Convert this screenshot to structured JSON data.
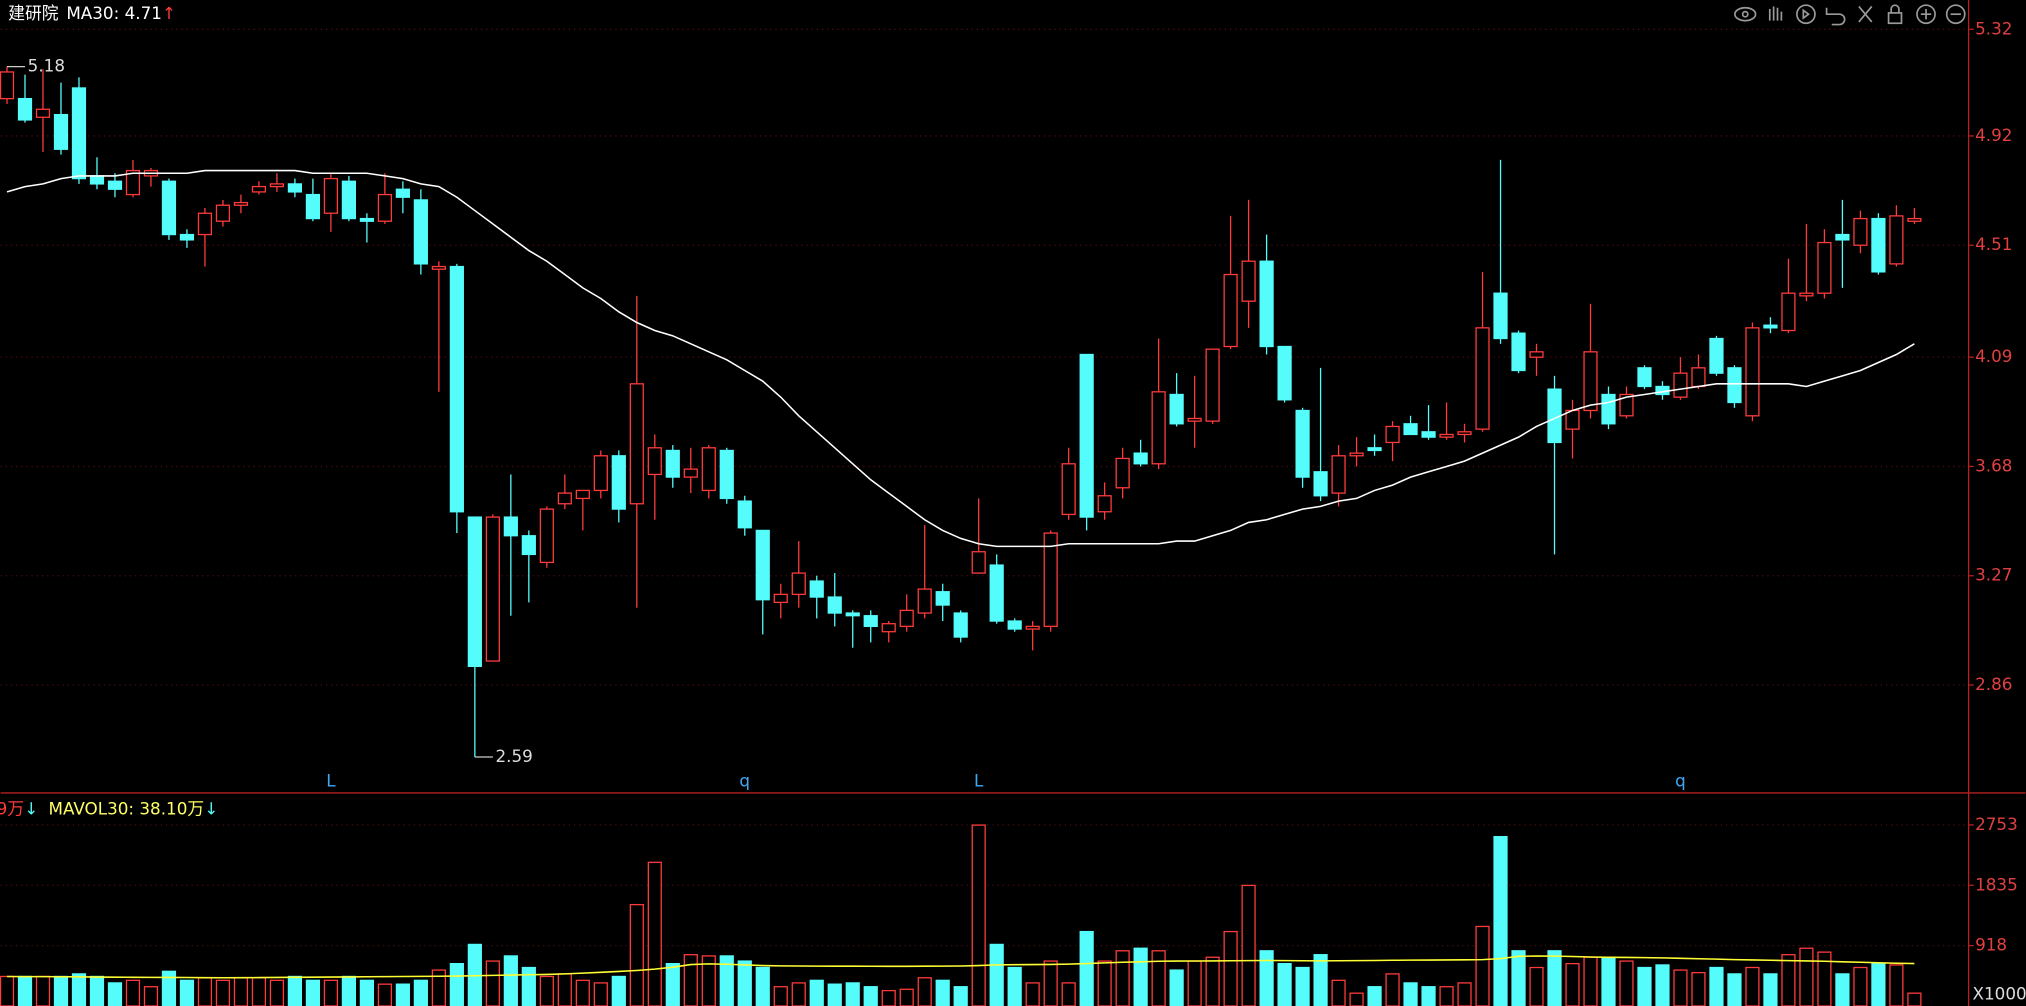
{
  "chart_data": [
    {
      "type": "candlestick",
      "title": "建研院",
      "indicator_label": "MA30: 4.71",
      "indicator_arrow": "↑",
      "up_color": "#ff3b3b",
      "down_color": "#54fcfc",
      "grid": true,
      "open": [
        5.06,
        5.06,
        4.99,
        5.0,
        5.1,
        4.77,
        4.75,
        4.7,
        4.77,
        4.75,
        4.55,
        4.55,
        4.6,
        4.66,
        4.71,
        4.73,
        4.74,
        4.7,
        4.63,
        4.75,
        4.61,
        4.6,
        4.72,
        4.68,
        4.42,
        4.43,
        3.49,
        2.95,
        3.49,
        3.42,
        3.32,
        3.54,
        3.56,
        3.59,
        3.72,
        3.54,
        3.65,
        3.74,
        3.64,
        3.59,
        3.74,
        3.55,
        3.44,
        3.17,
        3.2,
        3.25,
        3.19,
        3.13,
        3.12,
        3.06,
        3.08,
        3.13,
        3.21,
        3.13,
        3.28,
        3.31,
        3.1,
        3.07,
        3.08,
        3.5,
        4.1,
        3.51,
        3.6,
        3.73,
        3.69,
        3.95,
        3.85,
        3.85,
        4.13,
        4.3,
        4.45,
        4.13,
        3.89,
        3.66,
        3.58,
        3.72,
        3.75,
        3.77,
        3.84,
        3.81,
        3.79,
        3.8,
        3.82,
        4.33,
        4.18,
        4.09,
        3.97,
        3.82,
        3.89,
        3.95,
        3.87,
        4.05,
        3.98,
        3.94,
        3.98,
        4.16,
        4.05,
        3.87,
        4.21,
        4.19,
        4.32,
        4.33,
        4.55,
        4.51,
        4.61,
        4.44,
        4.6
      ],
      "high": [
        5.18,
        5.15,
        5.17,
        5.12,
        5.14,
        4.84,
        4.78,
        4.83,
        4.8,
        4.76,
        4.57,
        4.65,
        4.68,
        4.7,
        4.75,
        4.78,
        4.76,
        4.76,
        4.78,
        4.77,
        4.63,
        4.78,
        4.75,
        4.72,
        4.45,
        4.44,
        3.49,
        3.5,
        3.65,
        3.44,
        3.53,
        3.65,
        3.59,
        3.74,
        3.74,
        4.32,
        3.8,
        3.76,
        3.75,
        3.76,
        3.75,
        3.57,
        3.44,
        3.24,
        3.4,
        3.27,
        3.28,
        3.14,
        3.14,
        3.1,
        3.2,
        3.46,
        3.24,
        3.14,
        3.56,
        3.35,
        3.11,
        3.1,
        3.44,
        3.75,
        4.1,
        3.62,
        3.75,
        3.78,
        4.16,
        4.03,
        4.02,
        4.12,
        4.62,
        4.68,
        4.55,
        4.13,
        3.9,
        4.05,
        3.76,
        3.79,
        3.8,
        3.85,
        3.87,
        3.91,
        3.92,
        3.84,
        4.41,
        4.83,
        4.19,
        4.14,
        4.02,
        3.93,
        4.29,
        3.98,
        3.98,
        4.06,
        4.0,
        4.09,
        4.1,
        4.17,
        4.06,
        4.22,
        4.24,
        4.46,
        4.59,
        4.57,
        4.68,
        4.64,
        4.63,
        4.66,
        4.65
      ],
      "low": [
        5.04,
        4.97,
        4.86,
        4.85,
        4.74,
        4.72,
        4.69,
        4.69,
        4.73,
        4.53,
        4.5,
        4.43,
        4.58,
        4.63,
        4.7,
        4.71,
        4.69,
        4.6,
        4.56,
        4.6,
        4.52,
        4.59,
        4.63,
        4.4,
        3.96,
        3.43,
        2.59,
        2.95,
        3.12,
        3.17,
        3.3,
        3.52,
        3.44,
        3.56,
        3.47,
        3.15,
        3.48,
        3.6,
        3.58,
        3.56,
        3.54,
        3.42,
        3.05,
        3.11,
        3.15,
        3.11,
        3.08,
        3.0,
        3.02,
        3.02,
        3.06,
        3.11,
        3.1,
        3.02,
        3.28,
        3.09,
        3.06,
        2.99,
        3.06,
        3.48,
        3.44,
        3.48,
        3.56,
        3.68,
        3.67,
        3.83,
        3.75,
        3.84,
        4.12,
        4.2,
        4.1,
        3.92,
        3.6,
        3.55,
        3.53,
        3.68,
        3.72,
        3.7,
        3.8,
        3.78,
        3.78,
        3.77,
        3.81,
        4.14,
        4.03,
        4.02,
        3.35,
        3.71,
        3.86,
        3.82,
        3.86,
        3.97,
        3.93,
        3.93,
        3.97,
        4.02,
        3.9,
        3.85,
        4.18,
        4.18,
        4.3,
        4.31,
        4.35,
        4.48,
        4.4,
        4.43,
        4.59
      ],
      "close": [
        5.16,
        4.98,
        5.02,
        4.87,
        4.76,
        4.74,
        4.72,
        4.79,
        4.79,
        4.55,
        4.53,
        4.63,
        4.66,
        4.67,
        4.73,
        4.74,
        4.71,
        4.61,
        4.76,
        4.61,
        4.6,
        4.7,
        4.69,
        4.44,
        4.43,
        3.51,
        2.93,
        3.49,
        3.42,
        3.35,
        3.52,
        3.58,
        3.59,
        3.72,
        3.52,
        3.99,
        3.75,
        3.64,
        3.67,
        3.75,
        3.56,
        3.45,
        3.18,
        3.2,
        3.28,
        3.19,
        3.13,
        3.12,
        3.08,
        3.09,
        3.14,
        3.22,
        3.16,
        3.04,
        3.36,
        3.1,
        3.07,
        3.08,
        3.43,
        3.69,
        3.49,
        3.57,
        3.71,
        3.69,
        3.96,
        3.84,
        3.86,
        4.12,
        4.4,
        4.45,
        4.13,
        3.93,
        3.64,
        3.57,
        3.72,
        3.73,
        3.74,
        3.83,
        3.8,
        3.79,
        3.8,
        3.81,
        4.2,
        4.16,
        4.04,
        4.11,
        3.77,
        3.89,
        4.11,
        3.84,
        3.95,
        3.98,
        3.95,
        4.03,
        4.05,
        4.03,
        3.92,
        4.2,
        4.2,
        4.33,
        4.33,
        4.52,
        4.53,
        4.61,
        4.41,
        4.62,
        4.61
      ],
      "ma30": {
        "color": "#ffffff",
        "values": [
          4.71,
          4.73,
          4.74,
          4.76,
          4.77,
          4.77,
          4.77,
          4.78,
          4.78,
          4.78,
          4.78,
          4.79,
          4.79,
          4.79,
          4.79,
          4.79,
          4.79,
          4.78,
          4.78,
          4.78,
          4.78,
          4.77,
          4.76,
          4.74,
          4.73,
          4.69,
          4.64,
          4.59,
          4.54,
          4.49,
          4.45,
          4.4,
          4.35,
          4.31,
          4.26,
          4.22,
          4.19,
          4.17,
          4.14,
          4.11,
          4.08,
          4.04,
          4.0,
          3.94,
          3.87,
          3.81,
          3.75,
          3.69,
          3.63,
          3.58,
          3.53,
          3.48,
          3.44,
          3.41,
          3.39,
          3.38,
          3.38,
          3.38,
          3.38,
          3.39,
          3.39,
          3.39,
          3.39,
          3.39,
          3.39,
          3.4,
          3.4,
          3.42,
          3.44,
          3.47,
          3.48,
          3.5,
          3.52,
          3.53,
          3.55,
          3.56,
          3.59,
          3.61,
          3.64,
          3.66,
          3.68,
          3.7,
          3.73,
          3.76,
          3.79,
          3.83,
          3.86,
          3.89,
          3.91,
          3.92,
          3.94,
          3.95,
          3.96,
          3.97,
          3.98,
          3.99,
          3.99,
          3.99,
          3.99,
          3.99,
          3.98,
          4.0,
          4.02,
          4.04,
          4.07,
          4.1,
          4.14
        ]
      },
      "ylim": [
        2.46,
        5.43
      ],
      "yticks": [
        5.32,
        4.92,
        4.51,
        4.09,
        3.68,
        3.27,
        2.86
      ],
      "high_marker": 5.18,
      "low_marker": 2.59,
      "event_color": "#3fa9f5",
      "event_labels": [
        null,
        null,
        null,
        null,
        null,
        null,
        null,
        null,
        null,
        null,
        null,
        null,
        null,
        null,
        null,
        null,
        null,
        null,
        "L",
        null,
        null,
        null,
        null,
        null,
        null,
        null,
        null,
        null,
        null,
        null,
        null,
        null,
        null,
        null,
        null,
        null,
        null,
        null,
        null,
        null,
        null,
        "q",
        null,
        null,
        null,
        null,
        null,
        null,
        null,
        null,
        null,
        null,
        null,
        null,
        "L",
        null,
        null,
        null,
        null,
        null,
        null,
        null,
        null,
        null,
        null,
        null,
        null,
        null,
        null,
        null,
        null,
        null,
        null,
        null,
        null,
        null,
        null,
        null,
        null,
        null,
        null,
        null,
        null,
        null,
        null,
        null,
        null,
        null,
        null,
        null,
        null,
        null,
        null,
        "q",
        null,
        null,
        null,
        null,
        null,
        null,
        null,
        null,
        null,
        null,
        null,
        null,
        null
      ]
    },
    {
      "type": "volume",
      "volume_label": "9万",
      "volume_arrow": "↓",
      "mavol_label": "MAVOL30: 38.10万",
      "mavol_arrow": "↓",
      "unit_label": "X1000",
      "grid": true,
      "values": [
        449,
        449,
        449,
        449,
        488,
        449,
        351,
        390,
        293,
        527,
        390,
        429,
        390,
        429,
        429,
        390,
        449,
        390,
        390,
        449,
        390,
        332,
        332,
        390,
        546,
        644,
        936,
        683,
        761,
        585,
        449,
        488,
        390,
        351,
        449,
        1541,
        2184,
        644,
        780,
        761,
        761,
        683,
        585,
        293,
        351,
        390,
        332,
        351,
        293,
        234,
        254,
        429,
        390,
        293,
        2750,
        936,
        585,
        351,
        683,
        351,
        1131,
        683,
        839,
        878,
        839,
        546,
        683,
        741,
        1131,
        1833,
        839,
        644,
        585,
        780,
        390,
        195,
        293,
        488,
        351,
        293,
        293,
        351,
        1209,
        2574,
        839,
        585,
        839,
        644,
        741,
        741,
        683,
        585,
        624,
        546,
        507,
        585,
        488,
        585,
        488,
        780,
        878,
        819,
        488,
        585,
        644,
        624,
        195
      ],
      "ma": {
        "color": "#ffff33",
        "values": [
          449,
          447,
          446,
          445,
          444,
          440,
          438,
          436,
          435,
          434,
          433,
          430,
          429,
          430,
          432,
          434,
          436,
          438,
          440,
          442,
          445,
          447,
          449,
          450,
          452,
          455,
          460,
          466,
          470,
          475,
          480,
          488,
          500,
          512,
          525,
          540,
          560,
          590,
          630,
          640,
          635,
          625,
          615,
          610,
          608,
          606,
          605,
          605,
          604,
          603,
          603,
          605,
          606,
          608,
          615,
          625,
          628,
          630,
          632,
          636,
          645,
          655,
          665,
          672,
          680,
          683,
          684,
          685,
          688,
          690,
          692,
          690,
          688,
          686,
          688,
          690,
          692,
          695,
          697,
          698,
          700,
          702,
          705,
          720,
          755,
          760,
          758,
          752,
          745,
          740,
          738,
          735,
          732,
          725,
          718,
          712,
          705,
          700,
          695,
          690,
          685,
          680,
          672,
          665,
          658,
          650,
          645
        ]
      },
      "ylim": [
        0,
        3180
      ],
      "yticks": [
        2753,
        1835,
        918
      ]
    }
  ]
}
